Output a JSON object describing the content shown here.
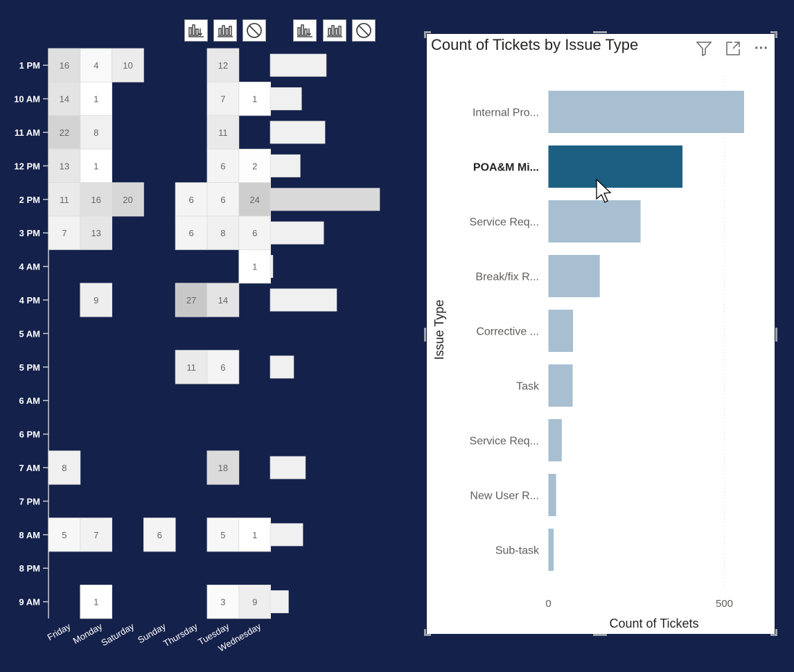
{
  "matrix_toolbar": {
    "icons": [
      "drill-down-icon",
      "expand-hierarchy-icon",
      "clear-icon"
    ]
  },
  "chart_data": [
    {
      "type": "heatmap",
      "x_categories": [
        "Friday",
        "Monday",
        "Saturday",
        "Sunday",
        "Thursday",
        "Tuesday",
        "Wednesday"
      ],
      "y_categories": [
        "1 PM",
        "10 AM",
        "11 AM",
        "12 PM",
        "2 PM",
        "3 PM",
        "4 AM",
        "4 PM",
        "5 AM",
        "5 PM",
        "6 AM",
        "6 PM",
        "7 AM",
        "7 PM",
        "8 AM",
        "8 PM",
        "9 AM"
      ],
      "values": [
        [
          16,
          4,
          10,
          null,
          null,
          12,
          null
        ],
        [
          14,
          1,
          null,
          null,
          null,
          7,
          1
        ],
        [
          22,
          8,
          null,
          null,
          null,
          11,
          null
        ],
        [
          13,
          1,
          null,
          null,
          null,
          6,
          2
        ],
        [
          11,
          16,
          20,
          null,
          6,
          6,
          24
        ],
        [
          7,
          13,
          null,
          null,
          6,
          8,
          6
        ],
        [
          null,
          null,
          null,
          null,
          null,
          null,
          1
        ],
        [
          null,
          9,
          null,
          null,
          27,
          14,
          null
        ],
        [
          null,
          null,
          null,
          null,
          null,
          null,
          null
        ],
        [
          null,
          null,
          null,
          null,
          11,
          6,
          null
        ],
        [
          null,
          null,
          null,
          null,
          null,
          null,
          null
        ],
        [
          null,
          null,
          null,
          null,
          null,
          null,
          null
        ],
        [
          8,
          null,
          null,
          null,
          null,
          18,
          null
        ],
        [
          null,
          null,
          null,
          null,
          null,
          null,
          null
        ],
        [
          5,
          7,
          null,
          6,
          null,
          5,
          1
        ],
        [
          null,
          null,
          null,
          null,
          null,
          null,
          null
        ],
        [
          null,
          1,
          null,
          null,
          null,
          3,
          9
        ]
      ],
      "row_totals": [
        42,
        23,
        41,
        22,
        83,
        40,
        1,
        50,
        0,
        17,
        0,
        0,
        26,
        0,
        24,
        0,
        13
      ],
      "value_range": [
        1,
        27
      ],
      "colors": {
        "low": "#ffffff",
        "high": "#c8c8c8",
        "total_bar": "#f0f0f0",
        "total_bar_highlight": "#d9d9d9"
      }
    },
    {
      "type": "bar",
      "orientation": "horizontal",
      "title": "Count of Tickets by Issue Type",
      "ylabel": "Issue Type",
      "xlabel": "Count of Tickets",
      "categories": [
        "Internal Pro...",
        "POA&M Mi...",
        "Service Req...",
        "Break/fix R...",
        "Corrective ...",
        "Task",
        "Service Req...",
        "New User R...",
        "Sub-task"
      ],
      "values": [
        556,
        381,
        262,
        146,
        70,
        69,
        38,
        22,
        15
      ],
      "highlighted_category": "POA&M Mi...",
      "xlim": [
        0,
        580
      ],
      "x_ticks": [
        0,
        500
      ],
      "grid": true,
      "colors": {
        "bar": "#a7bfd1",
        "highlight": "#1d5f83"
      }
    }
  ],
  "bar_header": {
    "icons": [
      "filter-icon",
      "focus-mode-icon",
      "more-options-icon"
    ],
    "more_label": "···"
  }
}
